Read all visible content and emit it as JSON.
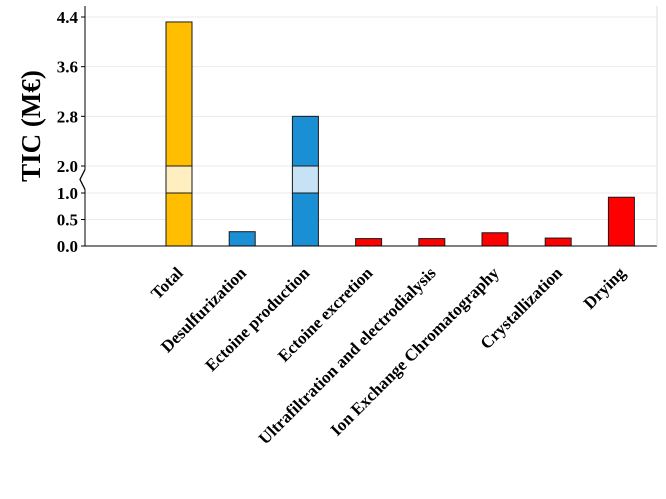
{
  "chart_data": {
    "type": "bar",
    "title": "",
    "xlabel": "",
    "ylabel": "TIC (M€)",
    "broken_axis": true,
    "axis_break": {
      "lower_range": [
        0,
        1.0
      ],
      "upper_range": [
        2.0,
        4.4
      ]
    },
    "y_ticks": [
      "0.0",
      "0.5",
      "1.0",
      "2.0",
      "2.8",
      "3.6",
      "4.4"
    ],
    "grid": true,
    "categories": [
      "Total",
      "Desulfurization",
      "Ectoine production",
      "Ectoine excretion",
      "Ultrafiltration and electrodialysis",
      "Ion Exchange Chromatography",
      "Crystallization",
      "Drying"
    ],
    "values": [
      4.32,
      0.27,
      2.8,
      0.14,
      0.14,
      0.25,
      0.15,
      0.92
    ],
    "bar_colors": [
      "#FFBF00",
      "#1B8FD4",
      "#1B8FD4",
      "#FF0000",
      "#FF0000",
      "#FF0000",
      "#FF0000",
      "#FF0000"
    ],
    "break_band_colors": [
      "#FFEFC0",
      "#C6E2F4",
      "#C6E2F4",
      "",
      "",
      "",
      "",
      ""
    ]
  }
}
